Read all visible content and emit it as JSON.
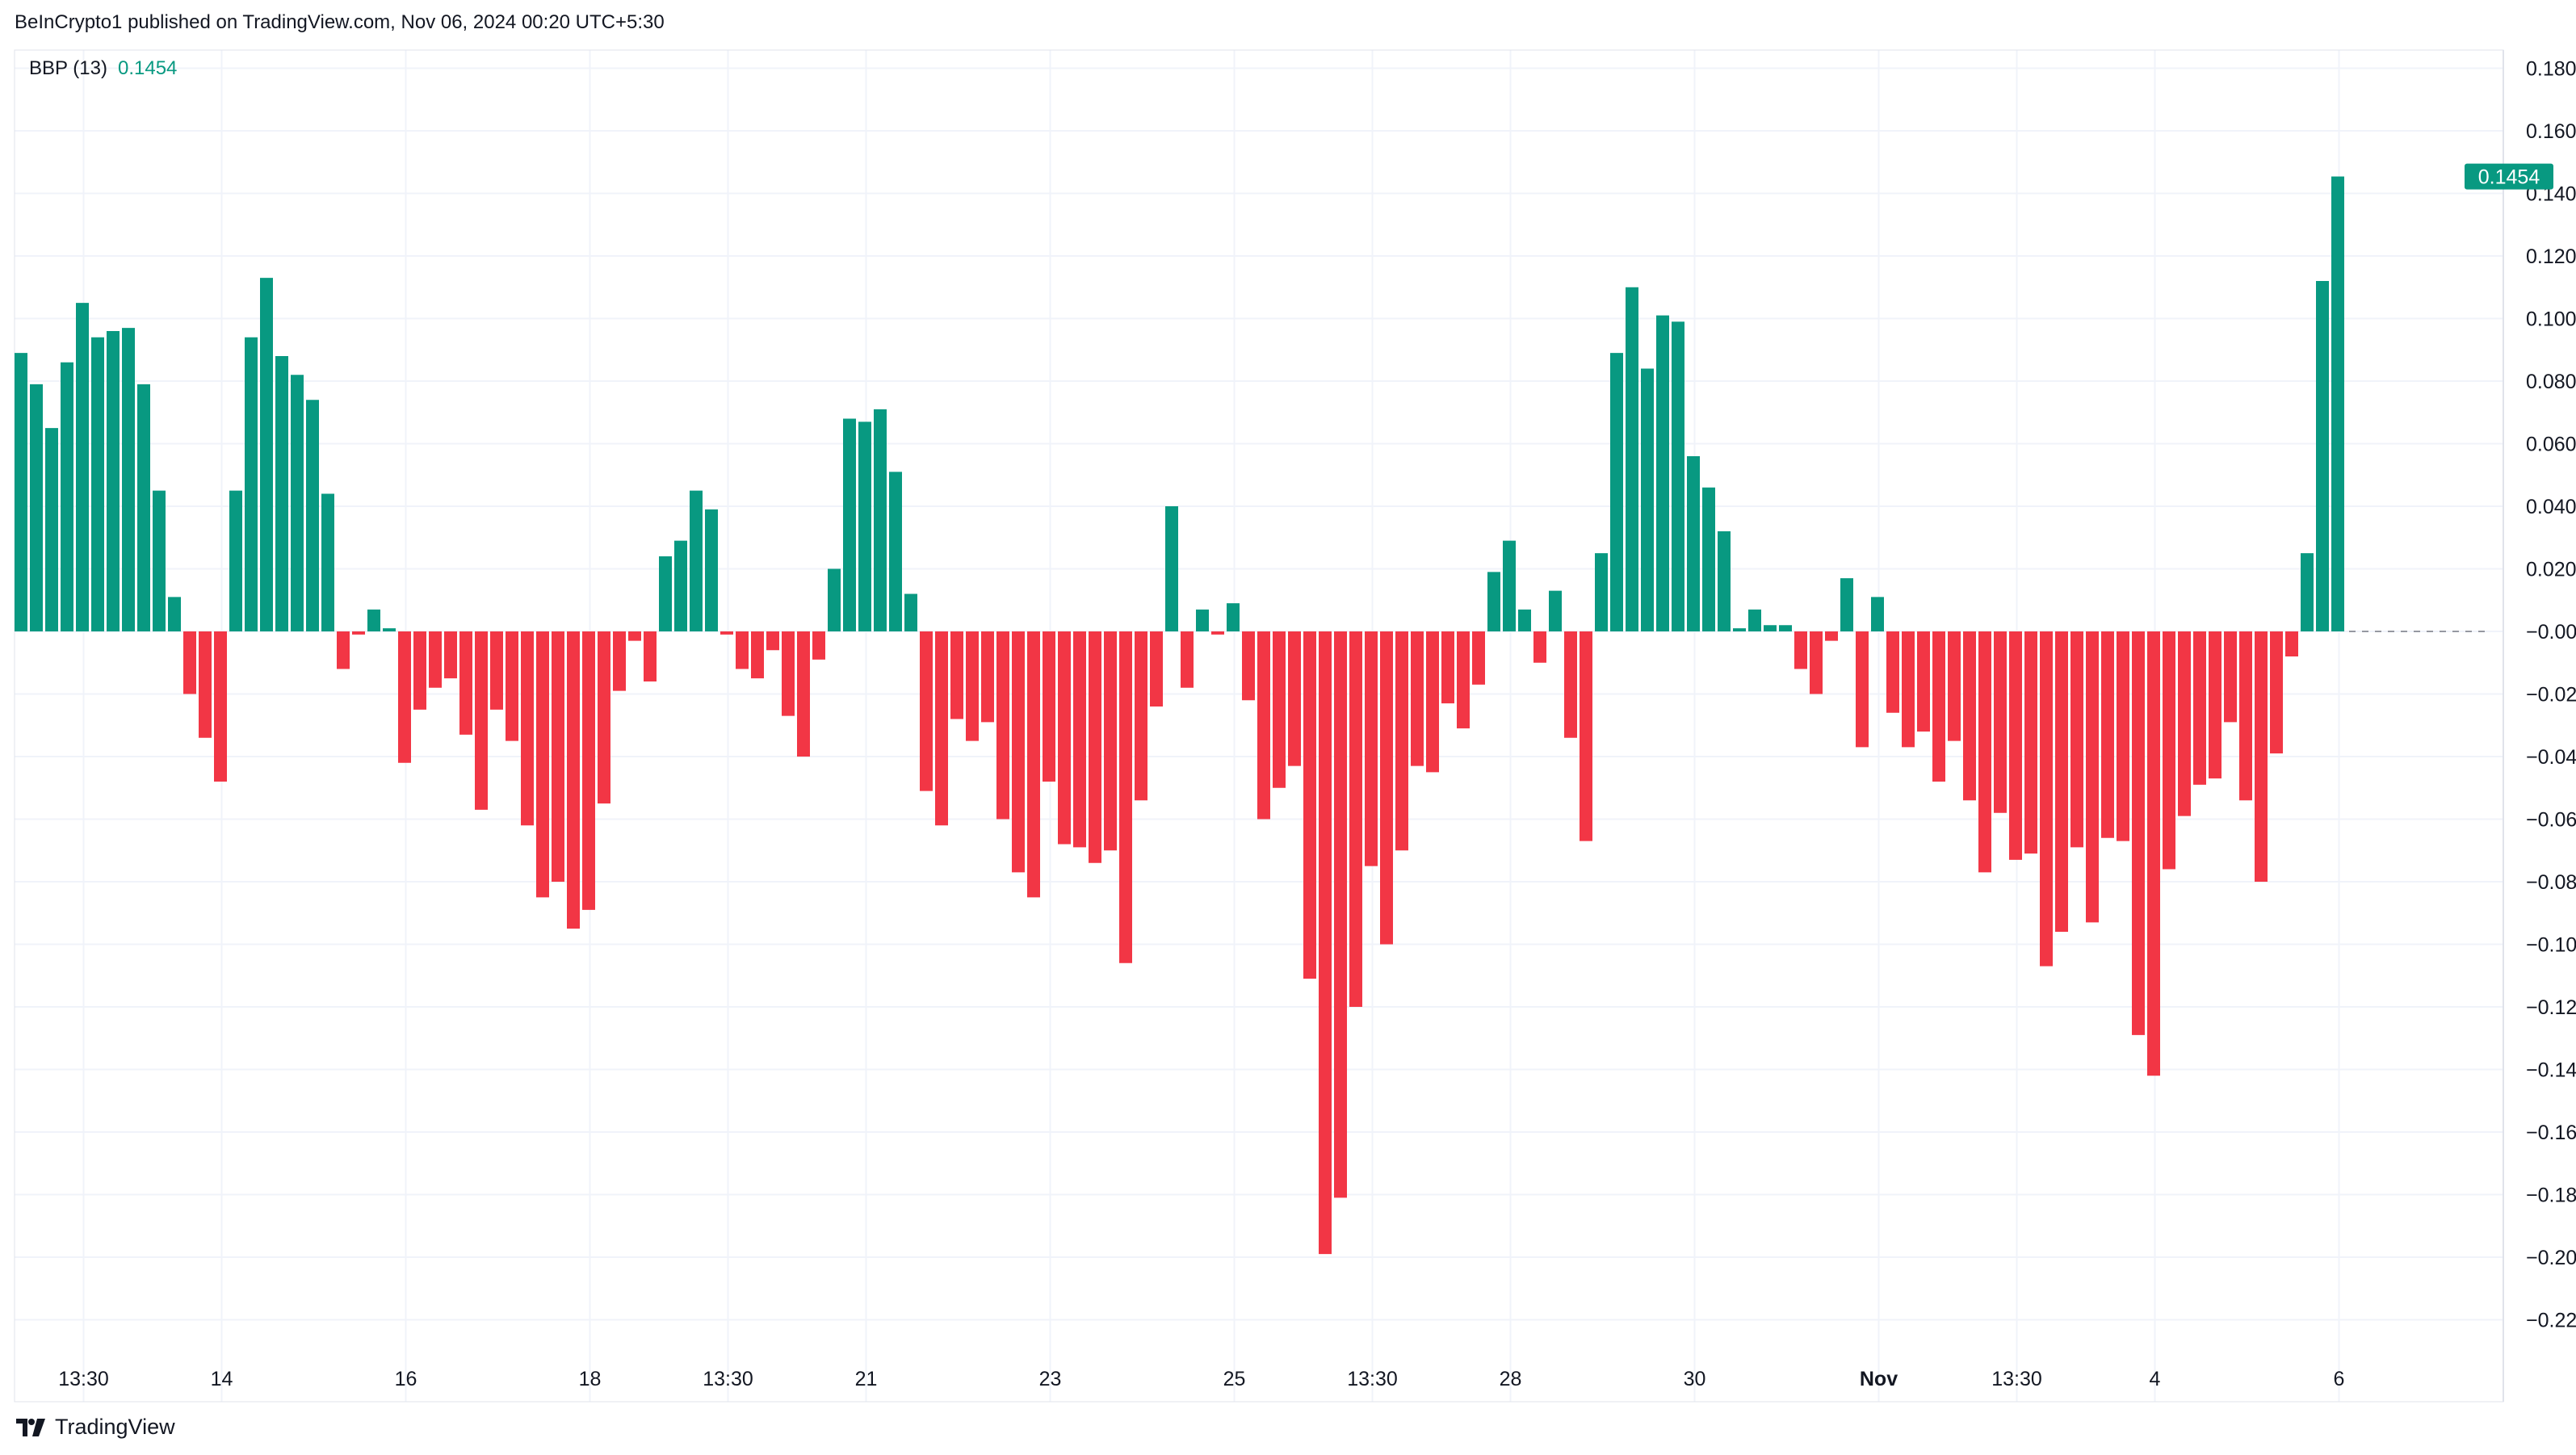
{
  "header": {
    "published_by": "BeInCrypto1 published on TradingView.com, Nov 06, 2024 00:20 UTC+5:30"
  },
  "footer": {
    "brand": "TradingView"
  },
  "colors": {
    "positive": "#089981",
    "negative": "#f23645",
    "grid": "#f0f3fa",
    "text": "#131722"
  },
  "chart_data": {
    "type": "bar",
    "indicator_name": "BBP (13)",
    "indicator_value": "0.1454",
    "last_value_label": "0.1454",
    "ylim": [
      -0.228,
      0.188
    ],
    "yticks": [
      0.18,
      0.16,
      0.14,
      0.12,
      0.1,
      0.08,
      0.06,
      0.04,
      0.02,
      -0.0,
      -0.02,
      -0.04,
      -0.06,
      -0.08,
      -0.1,
      -0.12,
      -0.14,
      -0.16,
      -0.18,
      -0.2,
      -0.22
    ],
    "ytick_labels": [
      "0.1800",
      "0.1600",
      "0.1400",
      "0.1200",
      "0.1000",
      "0.0800",
      "0.0600",
      "0.0400",
      "0.0200",
      "−0.0000",
      "−0.0200",
      "−0.0400",
      "−0.0600",
      "−0.0800",
      "−0.1000",
      "−0.1200",
      "−0.1400",
      "−0.1600",
      "−0.1800",
      "−0.2000",
      "−0.2200"
    ],
    "xticks": [
      {
        "label": "13:30",
        "bar": 4.5,
        "bold": false
      },
      {
        "label": "14",
        "bar": 13.5,
        "bold": false
      },
      {
        "label": "16",
        "bar": 25.5,
        "bold": false
      },
      {
        "label": "18",
        "bar": 37.5,
        "bold": false
      },
      {
        "label": "13:30",
        "bar": 46.5,
        "bold": false
      },
      {
        "label": "21",
        "bar": 55.5,
        "bold": false
      },
      {
        "label": "23",
        "bar": 67.5,
        "bold": false
      },
      {
        "label": "25",
        "bar": 79.5,
        "bold": false
      },
      {
        "label": "13:30",
        "bar": 88.5,
        "bold": false
      },
      {
        "label": "28",
        "bar": 97.5,
        "bold": false
      },
      {
        "label": "30",
        "bar": 109.5,
        "bold": false
      },
      {
        "label": "Nov",
        "bar": 121.5,
        "bold": true
      },
      {
        "label": "13:30",
        "bar": 130.5,
        "bold": false
      },
      {
        "label": "4",
        "bar": 139.5,
        "bold": false
      },
      {
        "label": "6",
        "bar": 151.5,
        "bold": false
      }
    ],
    "values": [
      0.089,
      0.079,
      0.065,
      0.086,
      0.105,
      0.094,
      0.096,
      0.097,
      0.079,
      0.045,
      0.011,
      -0.02,
      -0.034,
      -0.048,
      0.045,
      0.094,
      0.113,
      0.088,
      0.082,
      0.074,
      0.044,
      -0.012,
      -0.001,
      0.007,
      0.001,
      -0.042,
      -0.025,
      -0.018,
      -0.015,
      -0.033,
      -0.057,
      -0.025,
      -0.035,
      -0.062,
      -0.085,
      -0.08,
      -0.095,
      -0.089,
      -0.055,
      -0.019,
      -0.003,
      -0.016,
      0.024,
      0.029,
      0.045,
      0.039,
      -0.001,
      -0.012,
      -0.015,
      -0.006,
      -0.027,
      -0.04,
      -0.009,
      0.02,
      0.068,
      0.067,
      0.071,
      0.051,
      0.012,
      -0.051,
      -0.062,
      -0.028,
      -0.035,
      -0.029,
      -0.06,
      -0.077,
      -0.085,
      -0.048,
      -0.068,
      -0.069,
      -0.074,
      -0.07,
      -0.106,
      -0.054,
      -0.024,
      0.04,
      -0.018,
      0.007,
      -0.001,
      0.009,
      -0.022,
      -0.06,
      -0.05,
      -0.043,
      -0.111,
      -0.199,
      -0.181,
      -0.12,
      -0.075,
      -0.1,
      -0.07,
      -0.043,
      -0.045,
      -0.023,
      -0.031,
      -0.017,
      0.019,
      0.029,
      0.007,
      -0.01,
      0.013,
      -0.034,
      -0.067,
      0.025,
      0.089,
      0.11,
      0.084,
      0.101,
      0.099,
      0.056,
      0.046,
      0.032,
      0.001,
      0.007,
      0.002,
      0.002,
      -0.012,
      -0.02,
      -0.003,
      0.017,
      -0.037,
      0.011,
      -0.026,
      -0.037,
      -0.032,
      -0.048,
      -0.035,
      -0.054,
      -0.077,
      -0.058,
      -0.073,
      -0.071,
      -0.107,
      -0.096,
      -0.069,
      -0.093,
      -0.066,
      -0.067,
      -0.129,
      -0.142,
      -0.076,
      -0.059,
      -0.049,
      -0.047,
      -0.029,
      -0.054,
      -0.08,
      -0.039,
      -0.008,
      0.025,
      0.112,
      0.1454
    ]
  }
}
